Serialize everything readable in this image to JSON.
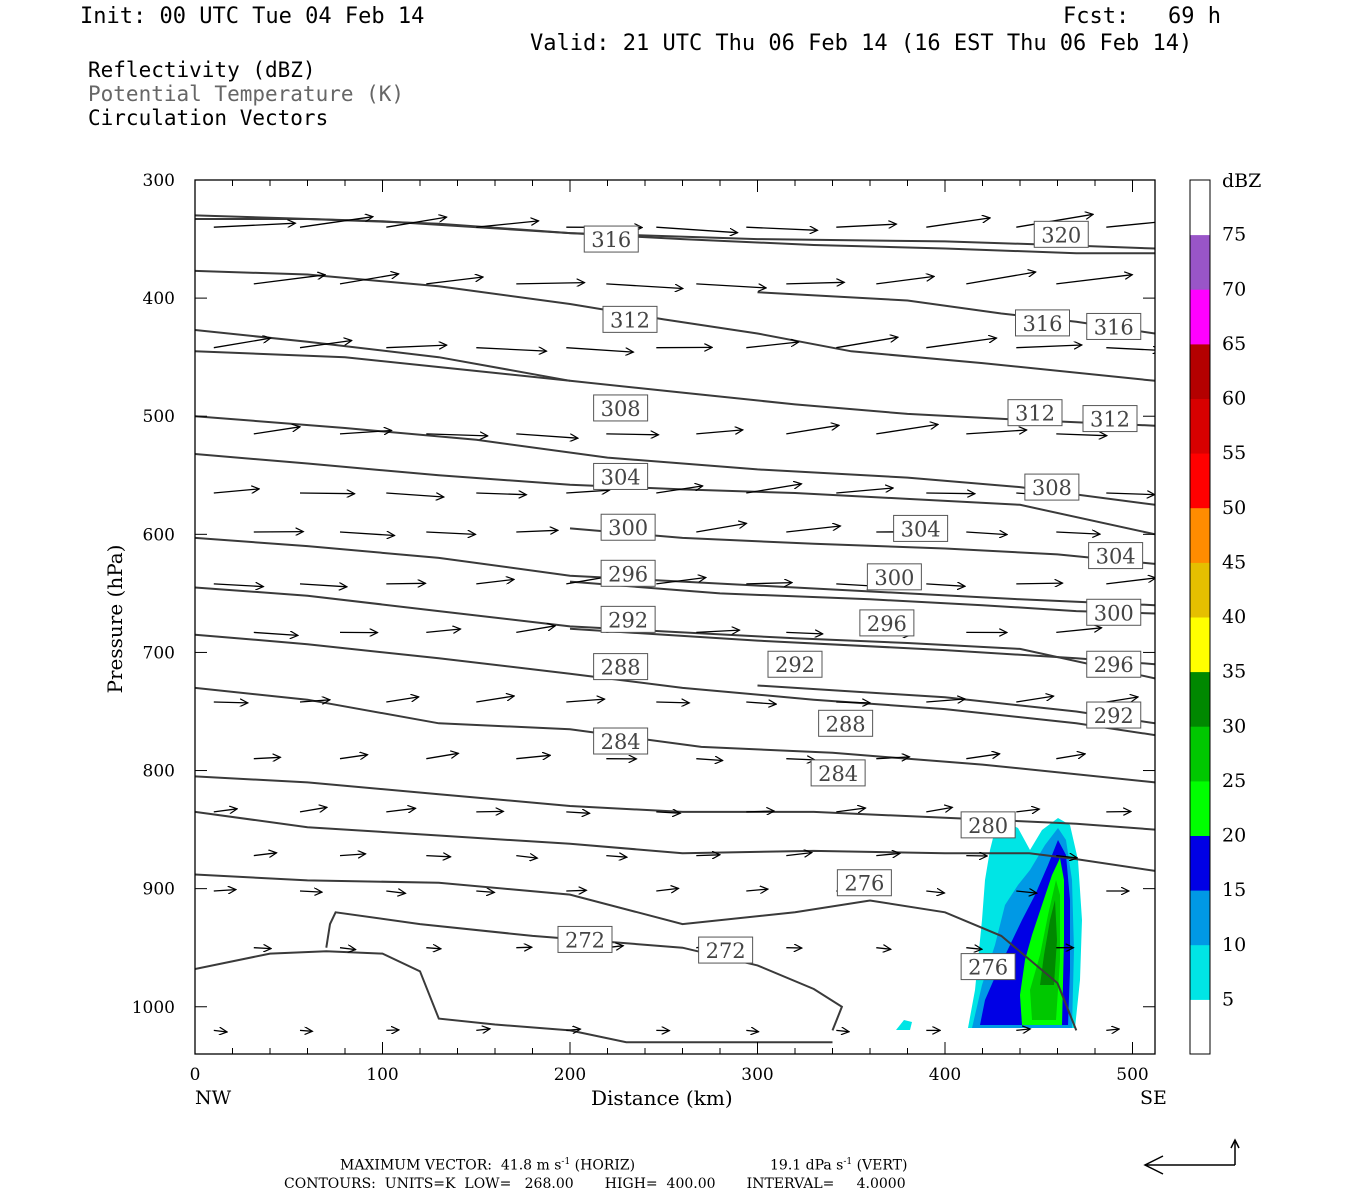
{
  "header": {
    "init": "Init: 00 UTC Tue 04 Feb 14",
    "fcst_label": "Fcst:",
    "fcst_value": "69 h",
    "valid": "Valid: 21 UTC Thu 06 Feb 14 (16 EST Thu 06 Feb 14)"
  },
  "legend": {
    "line1": "Reflectivity (dBZ)",
    "line2": "Potential Temperature (K)",
    "line3": "Circulation Vectors"
  },
  "footer": {
    "max_vector": "MAXIMUM VECTOR:  41.8 m s",
    "max_vector_sup": "-1",
    "max_vector_horiz": " (HORIZ)",
    "vert": "19.1 dPa s",
    "vert_sup": "-1",
    "vert_tail": " (VERT)",
    "contours": "CONTOURS:  UNITS=K  LOW=   268.00       HIGH=  400.00       INTERVAL=     4.0000"
  },
  "chart_data": {
    "type": "cross-section",
    "xlabel": "Distance (km)",
    "ylabel": "Pressure (hPa)",
    "xlim": [
      0,
      512
    ],
    "ylim": [
      1040,
      300
    ],
    "x_ticks": [
      0,
      100,
      200,
      300,
      400,
      500
    ],
    "x_tick_labels": [
      "0",
      "100",
      "200",
      "300",
      "400",
      "500"
    ],
    "y_ticks": [
      300,
      400,
      500,
      600,
      700,
      800,
      900,
      1000
    ],
    "y_tick_labels": [
      "300",
      "400",
      "500",
      "600",
      "700",
      "800",
      "900",
      "1000"
    ],
    "x_end_labels": {
      "left": "NW",
      "right": "SE"
    },
    "colorbar": {
      "title": "dBZ",
      "levels": [
        "5",
        "10",
        "15",
        "20",
        "25",
        "30",
        "35",
        "40",
        "45",
        "50",
        "55",
        "60",
        "65",
        "70",
        "75"
      ],
      "colors": [
        "#ffffff",
        "#00e5e5",
        "#0099e5",
        "#0000e5",
        "#00ff00",
        "#00c800",
        "#008800",
        "#ffff00",
        "#e5bf00",
        "#ff8c00",
        "#ff0000",
        "#d80000",
        "#b40000",
        "#ff00ff",
        "#9955c8",
        "#ffffff"
      ]
    },
    "theta_contours": [
      {
        "value": 320,
        "points": [
          [
            0,
            330
          ],
          [
            100,
            335
          ],
          [
            200,
            345
          ],
          [
            300,
            350
          ],
          [
            400,
            352
          ],
          [
            460,
            355
          ],
          [
            512,
            358
          ]
        ],
        "labels": [
          {
            "x": 462,
            "p": 346,
            "text": "320"
          }
        ]
      },
      {
        "value": 316,
        "points": [
          [
            0,
            333
          ],
          [
            60,
            333
          ],
          [
            130,
            337
          ],
          [
            200,
            345
          ],
          [
            260,
            350
          ],
          [
            330,
            355
          ],
          [
            400,
            358
          ],
          [
            470,
            362
          ],
          [
            512,
            362
          ]
        ],
        "labels": [
          {
            "x": 222,
            "p": 350,
            "text": "316"
          }
        ]
      },
      {
        "value": 312,
        "points": [
          [
            0,
            377
          ],
          [
            60,
            380
          ],
          [
            130,
            390
          ],
          [
            200,
            405
          ],
          [
            250,
            418
          ],
          [
            300,
            430
          ],
          [
            350,
            445
          ],
          [
            420,
            455
          ],
          [
            512,
            470
          ]
        ],
        "labels": [
          {
            "x": 232,
            "p": 418,
            "text": "312"
          }
        ]
      },
      {
        "value": 316,
        "points": [
          [
            300,
            395
          ],
          [
            380,
            402
          ],
          [
            430,
            413
          ],
          [
            470,
            420
          ],
          [
            512,
            430
          ]
        ],
        "labels": [
          {
            "x": 452,
            "p": 421,
            "text": "316"
          },
          {
            "x": 490,
            "p": 424,
            "text": "316"
          }
        ]
      },
      {
        "value": 308,
        "points": [
          [
            0,
            427
          ],
          [
            60,
            437
          ],
          [
            130,
            450
          ],
          [
            200,
            470
          ],
          [
            260,
            480
          ],
          [
            320,
            490
          ],
          [
            380,
            498
          ],
          [
            440,
            503
          ],
          [
            512,
            508
          ]
        ],
        "labels": [
          {
            "x": 227,
            "p": 493,
            "text": "308"
          }
        ]
      },
      {
        "value": 312,
        "points": [
          [
            0,
            445
          ],
          [
            80,
            450
          ],
          [
            140,
            460
          ],
          [
            200,
            470
          ]
        ],
        "labels": [
          {
            "x": 448,
            "p": 497,
            "text": "312"
          },
          {
            "x": 488,
            "p": 502,
            "text": "312"
          }
        ]
      },
      {
        "value": 304,
        "points": [
          [
            0,
            532
          ],
          [
            60,
            540
          ],
          [
            130,
            550
          ],
          [
            200,
            558
          ],
          [
            260,
            562
          ],
          [
            320,
            565
          ],
          [
            380,
            570
          ],
          [
            440,
            575
          ],
          [
            512,
            600
          ]
        ],
        "labels": [
          {
            "x": 227,
            "p": 551,
            "text": "304"
          }
        ]
      },
      {
        "value": 308,
        "points": [
          [
            0,
            500
          ],
          [
            80,
            510
          ],
          [
            150,
            520
          ],
          [
            220,
            535
          ],
          [
            300,
            545
          ],
          [
            380,
            552
          ],
          [
            440,
            560
          ],
          [
            512,
            575
          ]
        ],
        "labels": [
          {
            "x": 457,
            "p": 560,
            "text": "308"
          }
        ]
      },
      {
        "value": 300,
        "points": [
          [
            0,
            603
          ],
          [
            60,
            610
          ],
          [
            130,
            620
          ],
          [
            200,
            635
          ],
          [
            260,
            640
          ],
          [
            320,
            645
          ],
          [
            380,
            650
          ],
          [
            440,
            655
          ],
          [
            512,
            660
          ]
        ],
        "labels": [
          {
            "x": 231,
            "p": 594,
            "text": "300"
          }
        ]
      },
      {
        "value": 304,
        "points": [
          [
            200,
            595
          ],
          [
            260,
            603
          ],
          [
            330,
            608
          ],
          [
            400,
            612
          ],
          [
            460,
            617
          ],
          [
            512,
            625
          ]
        ],
        "labels": [
          {
            "x": 387,
            "p": 595,
            "text": "304"
          },
          {
            "x": 491,
            "p": 618,
            "text": "304"
          }
        ]
      },
      {
        "value": 296,
        "points": [
          [
            0,
            645
          ],
          [
            60,
            652
          ],
          [
            130,
            665
          ],
          [
            200,
            678
          ],
          [
            260,
            683
          ],
          [
            320,
            688
          ],
          [
            380,
            692
          ],
          [
            440,
            697
          ],
          [
            512,
            722
          ]
        ],
        "labels": [
          {
            "x": 231,
            "p": 633,
            "text": "296"
          }
        ]
      },
      {
        "value": 300,
        "points": [
          [
            200,
            640
          ],
          [
            280,
            650
          ],
          [
            360,
            655
          ],
          [
            420,
            660
          ],
          [
            470,
            665
          ],
          [
            512,
            667
          ]
        ],
        "labels": [
          {
            "x": 373,
            "p": 636,
            "text": "300"
          },
          {
            "x": 490,
            "p": 666,
            "text": "300"
          }
        ]
      },
      {
        "value": 292,
        "points": [
          [
            0,
            685
          ],
          [
            60,
            693
          ],
          [
            130,
            705
          ],
          [
            200,
            718
          ],
          [
            260,
            730
          ],
          [
            330,
            740
          ],
          [
            400,
            748
          ],
          [
            470,
            760
          ],
          [
            512,
            770
          ]
        ],
        "labels": [
          {
            "x": 231,
            "p": 672,
            "text": "292"
          }
        ]
      },
      {
        "value": 296,
        "points": [
          [
            200,
            680
          ],
          [
            300,
            690
          ],
          [
            400,
            698
          ],
          [
            470,
            705
          ],
          [
            512,
            710
          ]
        ],
        "labels": [
          {
            "x": 369,
            "p": 675,
            "text": "296"
          },
          {
            "x": 490,
            "p": 710,
            "text": "296"
          }
        ]
      },
      {
        "value": 292,
        "points": [
          [
            300,
            728
          ],
          [
            400,
            738
          ],
          [
            470,
            750
          ],
          [
            512,
            760
          ]
        ],
        "labels": [
          {
            "x": 320,
            "p": 710,
            "text": "292"
          },
          {
            "x": 490,
            "p": 753,
            "text": "292"
          }
        ]
      },
      {
        "value": 288,
        "points": [
          [
            0,
            730
          ],
          [
            60,
            740
          ],
          [
            130,
            760
          ],
          [
            200,
            765
          ],
          [
            270,
            780
          ],
          [
            340,
            785
          ],
          [
            420,
            795
          ],
          [
            512,
            810
          ]
        ],
        "labels": [
          {
            "x": 227,
            "p": 712,
            "text": "288"
          },
          {
            "x": 347,
            "p": 760,
            "text": "288"
          }
        ]
      },
      {
        "value": 284,
        "points": [
          [
            0,
            805
          ],
          [
            60,
            810
          ],
          [
            130,
            820
          ],
          [
            200,
            830
          ],
          [
            260,
            835
          ],
          [
            330,
            835
          ],
          [
            400,
            840
          ],
          [
            470,
            845
          ],
          [
            512,
            850
          ]
        ],
        "labels": [
          {
            "x": 227,
            "p": 775,
            "text": "284"
          },
          {
            "x": 343,
            "p": 802,
            "text": "284"
          }
        ]
      },
      {
        "value": 280,
        "points": [
          [
            0,
            835
          ],
          [
            60,
            848
          ],
          [
            130,
            855
          ],
          [
            200,
            862
          ],
          [
            260,
            870
          ],
          [
            330,
            868
          ],
          [
            400,
            870
          ],
          [
            445,
            870
          ],
          [
            470,
            875
          ],
          [
            512,
            885
          ]
        ],
        "labels": [
          {
            "x": 423,
            "p": 846,
            "text": "280"
          }
        ]
      },
      {
        "value": 276,
        "points": [
          [
            0,
            888
          ],
          [
            60,
            893
          ],
          [
            130,
            895
          ],
          [
            200,
            905
          ],
          [
            260,
            930
          ],
          [
            320,
            920
          ],
          [
            360,
            910
          ],
          [
            400,
            920
          ],
          [
            430,
            940
          ],
          [
            460,
            980
          ],
          [
            470,
            1020
          ]
        ],
        "labels": [
          {
            "x": 357,
            "p": 895,
            "text": "276"
          },
          {
            "x": 423,
            "p": 966,
            "text": "276"
          }
        ]
      },
      {
        "value": 272,
        "points": [
          [
            0,
            968
          ],
          [
            40,
            955
          ],
          [
            70,
            953
          ],
          [
            100,
            955
          ],
          [
            120,
            970
          ],
          [
            130,
            1010
          ],
          [
            160,
            1015
          ],
          [
            200,
            1020
          ],
          [
            230,
            1030
          ],
          [
            300,
            1030
          ],
          [
            340,
            1030
          ]
        ],
        "labels": [
          {
            "x": 208,
            "p": 943,
            "text": "272"
          },
          {
            "x": 283,
            "p": 952,
            "text": "272"
          }
        ]
      },
      {
        "value": 272,
        "points": [
          [
            70,
            950
          ],
          [
            72,
            930
          ],
          [
            75,
            920
          ],
          [
            120,
            930
          ],
          [
            180,
            940
          ],
          [
            260,
            950
          ],
          [
            300,
            965
          ],
          [
            330,
            985
          ],
          [
            345,
            1000
          ],
          [
            340,
            1020
          ]
        ],
        "labels": []
      }
    ],
    "vector_rows_hPa": [
      340,
      388,
      442,
      515,
      565,
      598,
      642,
      683,
      742,
      790,
      835,
      872,
      902,
      950,
      1020
    ],
    "vector_cols_km": [
      10,
      56,
      102,
      150,
      198,
      246,
      294,
      342,
      390,
      438,
      486
    ]
  }
}
